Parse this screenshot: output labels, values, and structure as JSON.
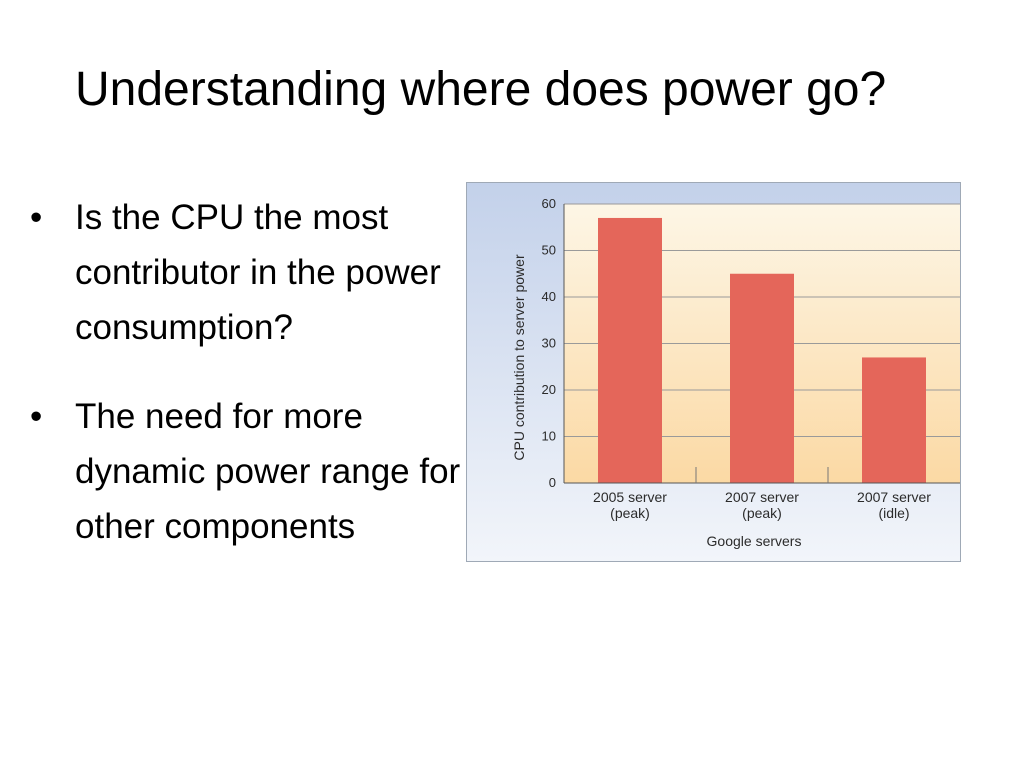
{
  "slide": {
    "title": "Understanding where does power go?",
    "bullets": [
      {
        "marker": "•",
        "text": "Is the CPU the most contributor in the power consumption?"
      },
      {
        "marker": "•",
        "text": "The need for more dynamic power range for other components"
      }
    ]
  },
  "chart_data": {
    "type": "bar",
    "categories": [
      [
        "2005 server",
        "(peak)"
      ],
      [
        "2007 server",
        "(peak)"
      ],
      [
        "2007 server",
        "(idle)"
      ]
    ],
    "values": [
      57,
      45,
      27
    ],
    "xlabel": "Google servers",
    "ylabel": "CPU contribution to server power",
    "ylim": [
      0,
      60
    ],
    "yticks": [
      0,
      10,
      20,
      30,
      40,
      50,
      60
    ],
    "grid": true,
    "colors": {
      "bar": "#e4665a",
      "plot_top": "#fdf6e6",
      "plot_bottom": "#fbd9a4",
      "frame_top": "#c3d1ea",
      "frame_bottom": "#f2f5fa",
      "grid": "#9a9a9a"
    }
  }
}
